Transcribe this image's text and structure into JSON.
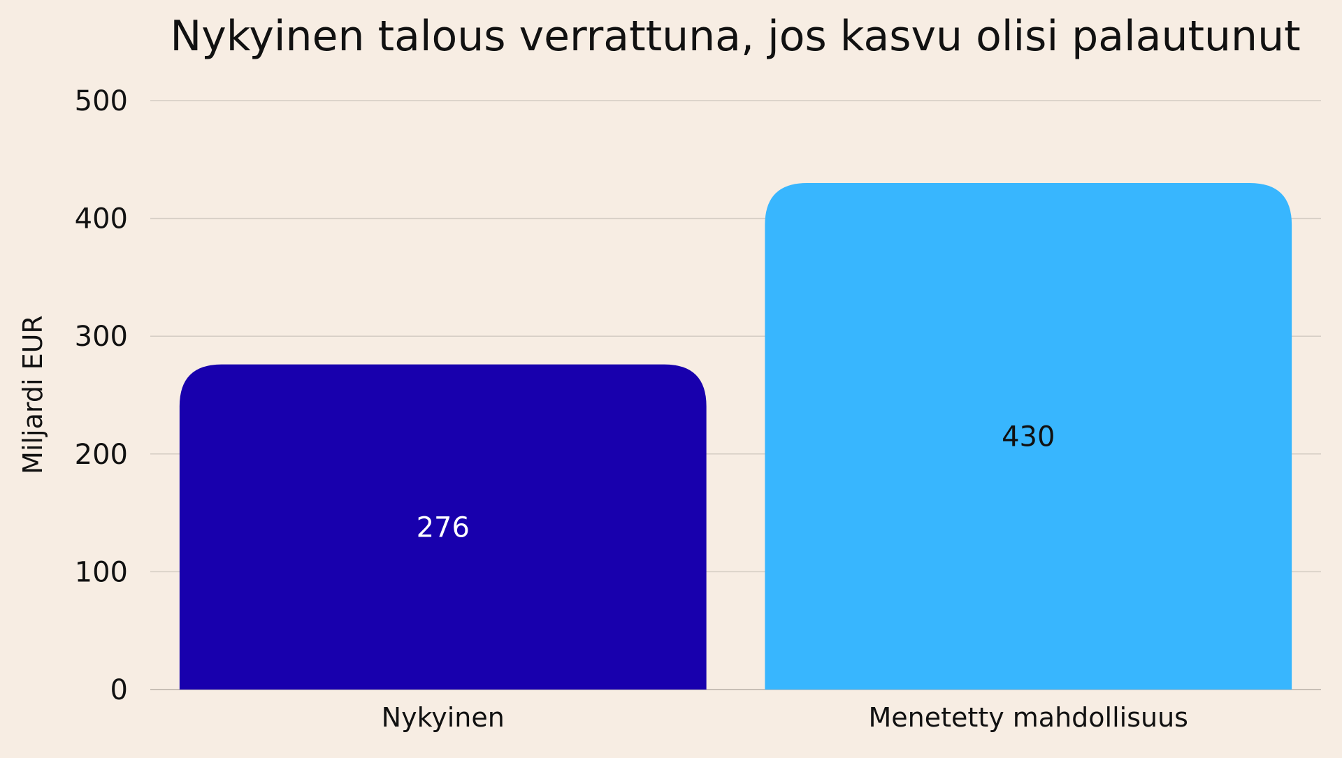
{
  "chart_data": {
    "type": "bar",
    "title": "Nykyinen talous verrattuna, jos kasvu olisi palautunut",
    "xlabel": "",
    "ylabel": "Miljardi EUR",
    "ylim": [
      0,
      500
    ],
    "yticks": [
      0,
      100,
      200,
      300,
      400,
      500
    ],
    "ytick_labels": [
      "0",
      "100",
      "200",
      "300",
      "400",
      "500"
    ],
    "categories": [
      "Nykyinen",
      "Menetetty mahdollisuus"
    ],
    "values": [
      276,
      430
    ],
    "data_labels": [
      "276",
      "430"
    ],
    "colors": [
      "#1800ad",
      "#38b6fe"
    ],
    "label_colors": [
      "#ffffff",
      "#111111"
    ],
    "background": "#f7ede3",
    "grid": true,
    "legend": "none"
  }
}
